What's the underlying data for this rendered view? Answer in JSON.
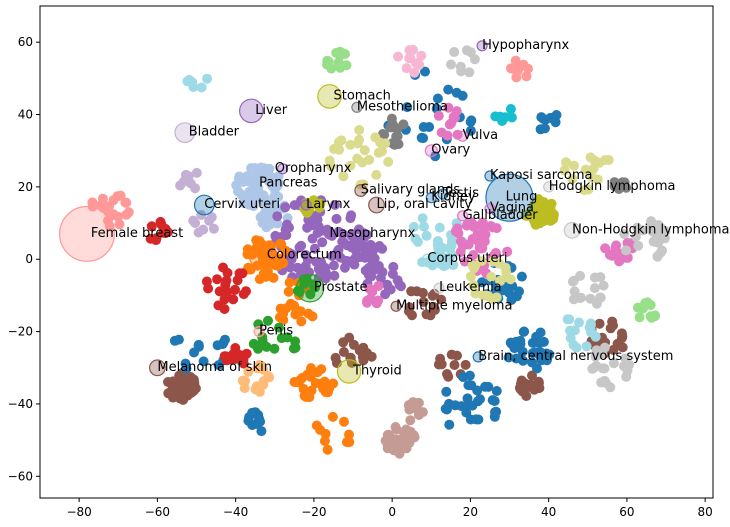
{
  "chart_data": {
    "type": "scatter",
    "title": "",
    "xlabel": "",
    "ylabel": "",
    "xlim": [
      -90,
      82
    ],
    "ylim": [
      -66,
      70
    ],
    "xticks": [
      -80,
      -60,
      -40,
      -20,
      0,
      20,
      40,
      60,
      80
    ],
    "yticks": [
      -60,
      -40,
      -20,
      0,
      20,
      40,
      60
    ],
    "xtick_labels": [
      "−80",
      "−60",
      "−40",
      "−20",
      "0",
      "20",
      "40",
      "60",
      "80"
    ],
    "ytick_labels": [
      "−60",
      "−40",
      "−20",
      "0",
      "20",
      "40",
      "60"
    ],
    "grid": false,
    "legend": "none",
    "palette": [
      "#1f77b4",
      "#aec7e8",
      "#ff7f0e",
      "#ffbb78",
      "#2ca02c",
      "#98df8a",
      "#d62728",
      "#ff9896",
      "#9467bd",
      "#c5b0d5",
      "#8c564b",
      "#c49c94",
      "#e377c2",
      "#f7b6d2",
      "#7f7f7f",
      "#c7c7c7",
      "#bcbd22",
      "#dbdb8d",
      "#17becf",
      "#9edae5"
    ],
    "clusters": [
      {
        "x": -34,
        "y": 20,
        "r": 6,
        "n": 60,
        "c": "#aec7e8"
      },
      {
        "x": -30,
        "y": 12,
        "r": 4,
        "n": 20,
        "c": "#aec7e8"
      },
      {
        "x": -20,
        "y": 5,
        "r": 12,
        "n": 90,
        "c": "#9467bd"
      },
      {
        "x": -8,
        "y": 2,
        "r": 6,
        "n": 30,
        "c": "#9467bd"
      },
      {
        "x": -2,
        "y": -5,
        "r": 5,
        "n": 20,
        "c": "#9467bd"
      },
      {
        "x": -32,
        "y": 0,
        "r": 6,
        "n": 40,
        "c": "#ff7f0e"
      },
      {
        "x": -25,
        "y": -12,
        "r": 6,
        "n": 20,
        "c": "#ff7f0e"
      },
      {
        "x": -20,
        "y": -34,
        "r": 5,
        "n": 25,
        "c": "#ff7f0e"
      },
      {
        "x": -15,
        "y": -48,
        "r": 5,
        "n": 10,
        "c": "#ff7f0e"
      },
      {
        "x": 38,
        "y": 13,
        "r": 4,
        "n": 40,
        "c": "#bcbd22"
      },
      {
        "x": -20,
        "y": 14,
        "r": 3,
        "n": 10,
        "c": "#bcbd22"
      },
      {
        "x": 2,
        "y": -50,
        "r": 4,
        "n": 45,
        "c": "#c49c94"
      },
      {
        "x": 6,
        "y": -42,
        "r": 3,
        "n": 10,
        "c": "#c49c94"
      },
      {
        "x": -54,
        "y": -35,
        "r": 4,
        "n": 35,
        "c": "#8c564b"
      },
      {
        "x": 35,
        "y": -35,
        "r": 3,
        "n": 20,
        "c": "#8c564b"
      },
      {
        "x": 55,
        "y": -22,
        "r": 5,
        "n": 25,
        "c": "#8c564b"
      },
      {
        "x": 8,
        "y": -12,
        "r": 5,
        "n": 15,
        "c": "#8c564b"
      },
      {
        "x": 15,
        "y": -30,
        "r": 4,
        "n": 10,
        "c": "#8c564b"
      },
      {
        "x": -10,
        "y": -26,
        "r": 5,
        "n": 15,
        "c": "#8c564b"
      },
      {
        "x": 35,
        "y": -25,
        "r": 6,
        "n": 30,
        "c": "#1f77b4"
      },
      {
        "x": 20,
        "y": -40,
        "r": 8,
        "n": 30,
        "c": "#1f77b4"
      },
      {
        "x": 28,
        "y": -6,
        "r": 6,
        "n": 20,
        "c": "#1f77b4"
      },
      {
        "x": -50,
        "y": -25,
        "r": 8,
        "n": 15,
        "c": "#1f77b4"
      },
      {
        "x": -35,
        "y": -45,
        "r": 3,
        "n": 10,
        "c": "#1f77b4"
      },
      {
        "x": 10,
        "y": 40,
        "r": 12,
        "n": 20,
        "c": "#1f77b4"
      },
      {
        "x": 40,
        "y": 38,
        "r": 3,
        "n": 8,
        "c": "#1f77b4"
      },
      {
        "x": 12,
        "y": 5,
        "r": 8,
        "n": 35,
        "c": "#9edae5"
      },
      {
        "x": 48,
        "y": -20,
        "r": 5,
        "n": 15,
        "c": "#9edae5"
      },
      {
        "x": -50,
        "y": 50,
        "r": 3,
        "n": 8,
        "c": "#9edae5"
      },
      {
        "x": 22,
        "y": 3,
        "r": 8,
        "n": 40,
        "c": "#e377c2"
      },
      {
        "x": 58,
        "y": 2,
        "r": 4,
        "n": 15,
        "c": "#e377c2"
      },
      {
        "x": 15,
        "y": 38,
        "r": 4,
        "n": 10,
        "c": "#e377c2"
      },
      {
        "x": -5,
        "y": -10,
        "r": 3,
        "n": 10,
        "c": "#e377c2"
      },
      {
        "x": -72,
        "y": 14,
        "r": 5,
        "n": 20,
        "c": "#ff9896"
      },
      {
        "x": 32,
        "y": 52,
        "r": 3,
        "n": 10,
        "c": "#ff9896"
      },
      {
        "x": -60,
        "y": 8,
        "r": 3,
        "n": 10,
        "c": "#d62728"
      },
      {
        "x": -42,
        "y": -8,
        "r": 6,
        "n": 20,
        "c": "#d62728"
      },
      {
        "x": -40,
        "y": -27,
        "r": 3,
        "n": 15,
        "c": "#d62728"
      },
      {
        "x": -22,
        "y": -8,
        "r": 3,
        "n": 10,
        "c": "#2ca02c"
      },
      {
        "x": -30,
        "y": -22,
        "r": 6,
        "n": 15,
        "c": "#2ca02c"
      },
      {
        "x": -14,
        "y": 55,
        "r": 3,
        "n": 12,
        "c": "#98df8a"
      },
      {
        "x": 65,
        "y": -14,
        "r": 3,
        "n": 10,
        "c": "#98df8a"
      },
      {
        "x": 55,
        "y": -30,
        "r": 6,
        "n": 20,
        "c": "#c7c7c7"
      },
      {
        "x": 65,
        "y": 5,
        "r": 6,
        "n": 25,
        "c": "#c7c7c7"
      },
      {
        "x": 50,
        "y": -8,
        "r": 5,
        "n": 15,
        "c": "#c7c7c7"
      },
      {
        "x": 18,
        "y": 55,
        "r": 4,
        "n": 8,
        "c": "#c7c7c7"
      },
      {
        "x": 0,
        "y": 35,
        "r": 5,
        "n": 15,
        "c": "#7f7f7f"
      },
      {
        "x": 58,
        "y": 20,
        "r": 2,
        "n": 8,
        "c": "#7f7f7f"
      },
      {
        "x": -8,
        "y": 28,
        "r": 8,
        "n": 25,
        "c": "#dbdb8d"
      },
      {
        "x": 25,
        "y": -5,
        "r": 6,
        "n": 20,
        "c": "#dbdb8d"
      },
      {
        "x": 50,
        "y": 25,
        "r": 6,
        "n": 15,
        "c": "#dbdb8d"
      },
      {
        "x": -52,
        "y": 22,
        "r": 3,
        "n": 8,
        "c": "#c5b0d5"
      },
      {
        "x": -48,
        "y": 10,
        "r": 3,
        "n": 8,
        "c": "#c5b0d5"
      },
      {
        "x": 28,
        "y": 40,
        "r": 3,
        "n": 6,
        "c": "#17becf"
      },
      {
        "x": -35,
        "y": -33,
        "r": 4,
        "n": 15,
        "c": "#ffbb78"
      },
      {
        "x": 5,
        "y": 55,
        "r": 4,
        "n": 10,
        "c": "#f7b6d2"
      }
    ],
    "highlights": [
      {
        "name": "Female breast",
        "x": -78,
        "y": 7,
        "r": 7,
        "c": "#ff9896",
        "label_dx": 1,
        "label_dy": -2
      },
      {
        "name": "Lung",
        "x": 30,
        "y": 17,
        "r": 6,
        "c": "#1f77b4",
        "label_dx": -1,
        "label_dy": -2
      },
      {
        "name": "Colorectum",
        "x": -33,
        "y": 1,
        "r": 3.5,
        "c": "#ff7f0e",
        "label_dx": 1,
        "label_dy": -2
      },
      {
        "name": "Prostate",
        "x": -21,
        "y": -8,
        "r": 3.5,
        "c": "#2ca02c",
        "label_dx": 1,
        "label_dy": -2
      },
      {
        "name": "Stomach",
        "x": -16,
        "y": 45,
        "r": 3,
        "c": "#bcbd22",
        "label_dx": 1,
        "label_dy": -2
      },
      {
        "name": "Liver",
        "x": -36,
        "y": 41,
        "r": 3,
        "c": "#9467bd",
        "label_dx": 1,
        "label_dy": -2
      },
      {
        "name": "Bladder",
        "x": -53,
        "y": 35,
        "r": 2.5,
        "c": "#c5b0d5",
        "label_dx": 1,
        "label_dy": -2
      },
      {
        "name": "Pancreas",
        "x": -30,
        "y": 21,
        "r": 2,
        "c": "#aec7e8",
        "label_dx": -4,
        "label_dy": -2
      },
      {
        "name": "Oropharynx",
        "x": -28,
        "y": 25,
        "r": 1,
        "c": "#9467bd",
        "label_dx": -2,
        "label_dy": -2
      },
      {
        "name": "Larynx",
        "x": -22,
        "y": 15,
        "r": 1,
        "c": "#9467bd",
        "label_dx": 0,
        "label_dy": -2
      },
      {
        "name": "Cervix uteri",
        "x": -48,
        "y": 15,
        "r": 2.5,
        "c": "#1f77b4",
        "label_dx": 0,
        "label_dy": -2
      },
      {
        "name": "Mesothelioma",
        "x": -9,
        "y": 42,
        "r": 1,
        "c": "#7f7f7f",
        "label_dx": 0,
        "label_dy": -2
      },
      {
        "name": "Vulva",
        "x": 18,
        "y": 34,
        "r": 1,
        "c": "#e377c2",
        "label_dx": 0,
        "label_dy": -2
      },
      {
        "name": "Ovary",
        "x": 10,
        "y": 30,
        "r": 1.5,
        "c": "#e377c2",
        "label_dx": 0,
        "label_dy": -2
      },
      {
        "name": "Kaposi sarcoma",
        "x": 25,
        "y": 23,
        "r": 1,
        "c": "#1f77b4",
        "label_dx": 0,
        "label_dy": -2
      },
      {
        "name": "Hodgkin lymphoma",
        "x": 40,
        "y": 20,
        "r": 1,
        "c": "#c7c7c7",
        "label_dx": 0,
        "label_dy": -2
      },
      {
        "name": "Salivary glands",
        "x": -8,
        "y": 19,
        "r": 1.5,
        "c": "#8c564b",
        "label_dx": 0,
        "label_dy": -2
      },
      {
        "name": "Lip, oral cavity",
        "x": -4,
        "y": 15,
        "r": 2,
        "c": "#8c564b",
        "label_dx": 0,
        "label_dy": -2
      },
      {
        "name": "Kidney",
        "x": 10,
        "y": 17,
        "r": 1,
        "c": "#1f77b4",
        "label_dx": 0,
        "label_dy": -2
      },
      {
        "name": "Testis",
        "x": 13,
        "y": 18,
        "r": 1,
        "c": "#1f77b4",
        "label_dx": 0,
        "label_dy": -2
      },
      {
        "name": "Vagina",
        "x": 25,
        "y": 14,
        "r": 1,
        "c": "#e377c2",
        "label_dx": 0,
        "label_dy": -2
      },
      {
        "name": "Gallbladder",
        "x": 18,
        "y": 12,
        "r": 1,
        "c": "#e377c2",
        "label_dx": 0,
        "label_dy": -2
      },
      {
        "name": "Non-Hodgkin lymphoma",
        "x": 46,
        "y": 8,
        "r": 2,
        "c": "#c7c7c7",
        "label_dx": 0,
        "label_dy": -2
      },
      {
        "name": "Nasopharynx",
        "x": -16,
        "y": 7,
        "r": 1,
        "c": "#9467bd",
        "label_dx": 0,
        "label_dy": -2
      },
      {
        "name": "Corpus uteri",
        "x": 9,
        "y": 0,
        "r": 1,
        "c": "#9edae5",
        "label_dx": 0,
        "label_dy": -2
      },
      {
        "name": "Leukemia",
        "x": 12,
        "y": -8,
        "r": 1,
        "c": "#c7c7c7",
        "label_dx": 0,
        "label_dy": -2
      },
      {
        "name": "Multiple myeloma",
        "x": 1,
        "y": -13,
        "r": 1,
        "c": "#8c564b",
        "label_dx": 0,
        "label_dy": -2
      },
      {
        "name": "Penis",
        "x": -34,
        "y": -20,
        "r": 1,
        "c": "#ff9896",
        "label_dx": 0,
        "label_dy": -2
      },
      {
        "name": "Melanoma of skin",
        "x": -60,
        "y": -30,
        "r": 2,
        "c": "#8c564b",
        "label_dx": 0,
        "label_dy": -2
      },
      {
        "name": "Thyroid",
        "x": -11,
        "y": -31,
        "r": 3,
        "c": "#bcbd22",
        "label_dx": 1,
        "label_dy": -2
      },
      {
        "name": "Brain, central nervous system",
        "x": 22,
        "y": -27,
        "r": 1,
        "c": "#1f77b4",
        "label_dx": 0,
        "label_dy": -2
      },
      {
        "name": "Hypopharynx",
        "x": 23,
        "y": 59,
        "r": 1,
        "c": "#9467bd",
        "label_dx": 0,
        "label_dy": -2
      }
    ]
  }
}
